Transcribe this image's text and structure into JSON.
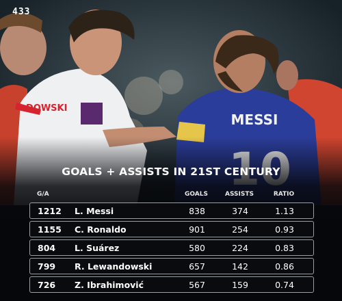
{
  "brand": {
    "logo": "433"
  },
  "headline": "GOALS + ASSISTS IN 21ST CENTURY",
  "table": {
    "headers": {
      "ga": "G/A",
      "goals": "GOALS",
      "assists": "ASSISTS",
      "ratio": "RATIO"
    },
    "rows": [
      {
        "ga": "1212",
        "name": "L. Messi",
        "goals": "838",
        "assists": "374",
        "ratio": "1.13"
      },
      {
        "ga": "1155",
        "name": "C. Ronaldo",
        "goals": "901",
        "assists": "254",
        "ratio": "0.93"
      },
      {
        "ga": "804",
        "name": "L. Suárez",
        "goals": "580",
        "assists": "224",
        "ratio": "0.83"
      },
      {
        "ga": "799",
        "name": "R. Lewandowski",
        "goals": "657",
        "assists": "142",
        "ratio": "0.86"
      },
      {
        "ga": "726",
        "name": "Z. Ibrahimović",
        "goals": "567",
        "assists": "159",
        "ratio": "0.74"
      }
    ]
  },
  "photo": {
    "jersey_name": "MESSI",
    "jersey_number": "10",
    "shirt_text": "DOWSKI"
  }
}
